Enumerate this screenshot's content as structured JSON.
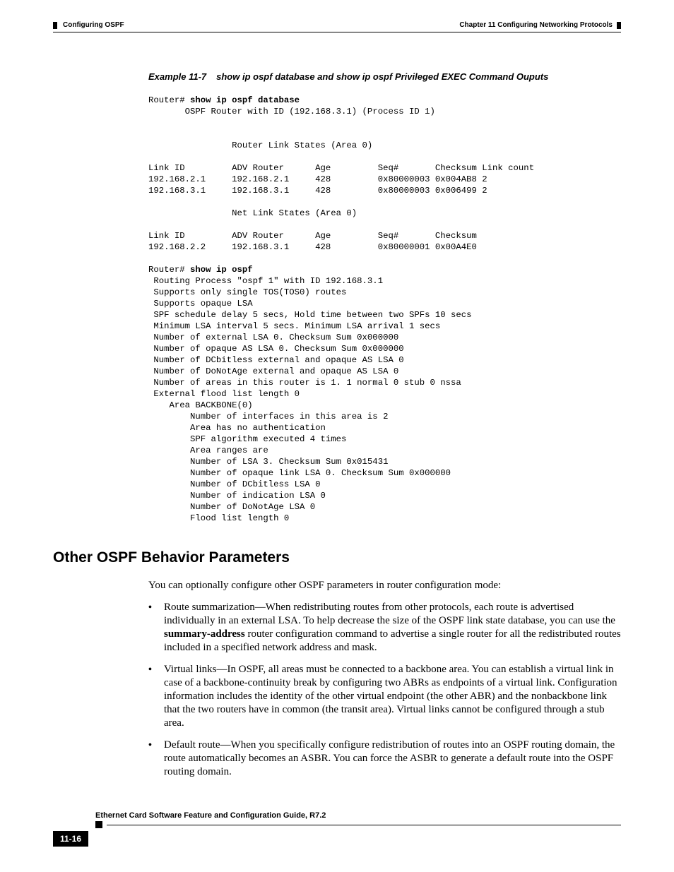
{
  "header": {
    "chapter": "Chapter 11 Configuring Networking Protocols",
    "section": "Configuring OSPF"
  },
  "example": {
    "prefix": "Example 11-7",
    "title": "show ip ospf database and show ip ospf Privileged EXEC Command Ouputs"
  },
  "terminal": {
    "prompt1": "Router# ",
    "cmd1": "show ip ospf database",
    "block1": "\n       OSPF Router with ID (192.168.3.1) (Process ID 1)\n\n\n                Router Link States (Area 0)\n\nLink ID         ADV Router      Age         Seq#       Checksum Link count\n192.168.2.1     192.168.2.1     428         0x80000003 0x004AB8 2\n192.168.3.1     192.168.3.1     428         0x80000003 0x006499 2\n\n                Net Link States (Area 0)\n\nLink ID         ADV Router      Age         Seq#       Checksum\n192.168.2.2     192.168.3.1     428         0x80000001 0x00A4E0\n\n",
    "prompt2": "Router# ",
    "cmd2": "show ip ospf",
    "block2": "\n Routing Process \"ospf 1\" with ID 192.168.3.1\n Supports only single TOS(TOS0) routes\n Supports opaque LSA\n SPF schedule delay 5 secs, Hold time between two SPFs 10 secs\n Minimum LSA interval 5 secs. Minimum LSA arrival 1 secs\n Number of external LSA 0. Checksum Sum 0x000000\n Number of opaque AS LSA 0. Checksum Sum 0x000000\n Number of DCbitless external and opaque AS LSA 0\n Number of DoNotAge external and opaque AS LSA 0\n Number of areas in this router is 1. 1 normal 0 stub 0 nssa\n External flood list length 0\n    Area BACKBONE(0)\n        Number of interfaces in this area is 2\n        Area has no authentication\n        SPF algorithm executed 4 times\n        Area ranges are\n        Number of LSA 3. Checksum Sum 0x015431\n        Number of opaque link LSA 0. Checksum Sum 0x000000\n        Number of DCbitless LSA 0\n        Number of indication LSA 0\n        Number of DoNotAge LSA 0\n        Flood list length 0"
  },
  "sectionHeading": "Other OSPF Behavior Parameters",
  "intro": "You can optionally configure other OSPF parameters in router configuration mode:",
  "bullets": [
    {
      "pre": "Route summarization—When redistributing routes from other protocols, each route is advertised individually in an external LSA. To help decrease the size of the OSPF link state database, you can use the ",
      "bold": "summary-address",
      "post": " router configuration command to advertise a single router for all the redistributed routes included in a specified network address and mask."
    },
    {
      "pre": "Virtual links—In OSPF, all areas must be connected to a backbone area. You can establish a virtual link in case of a backbone-continuity break by configuring two ABRs as endpoints of a virtual link. Configuration information includes the identity of the other virtual endpoint (the other ABR) and the nonbackbone link that the two routers have in common (the transit area). Virtual links cannot be configured through a stub area.",
      "bold": "",
      "post": ""
    },
    {
      "pre": "Default route—When you specifically configure redistribution of routes into an OSPF routing domain, the route automatically becomes an ASBR. You can force the ASBR to generate a default route into the OSPF routing domain.",
      "bold": "",
      "post": ""
    }
  ],
  "footer": {
    "docTitle": "Ethernet Card Software Feature and Configuration Guide, R7.2",
    "pageNumber": "11-16"
  },
  "colors": {
    "text": "#000000",
    "background": "#ffffff"
  },
  "fonts": {
    "body": "Times New Roman",
    "heading": "Arial",
    "mono": "Courier New"
  }
}
